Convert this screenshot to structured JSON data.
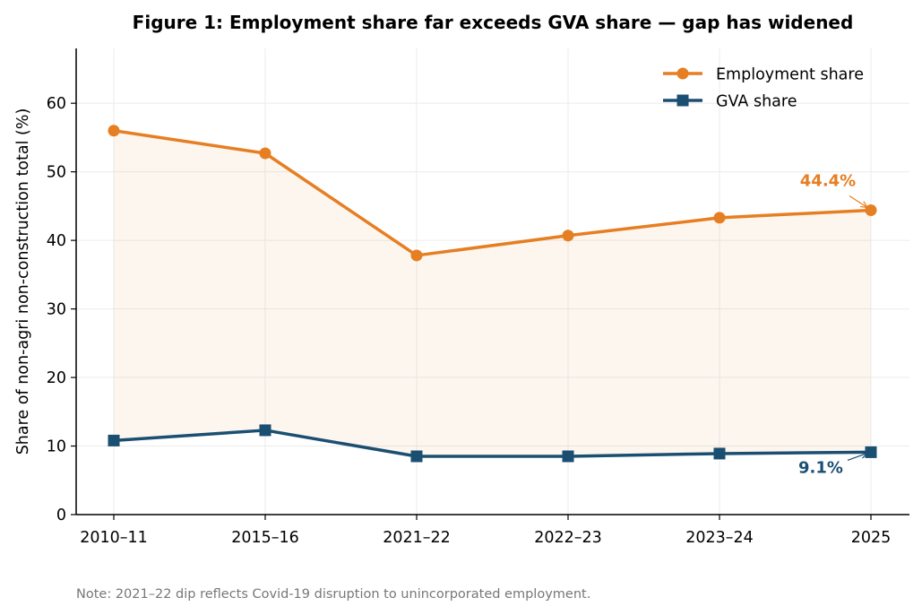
{
  "chart_data": {
    "type": "line",
    "title": "Figure 1: Employment share far exceeds GVA share — gap has widened",
    "xlabel": "",
    "ylabel": "Share of non-agri non-construction total (%)",
    "categories": [
      "2010–11",
      "2015–16",
      "2021–22",
      "2022–23",
      "2023–24",
      "2025"
    ],
    "ylim": [
      0,
      68
    ],
    "yticks": [
      0,
      10,
      20,
      30,
      40,
      50,
      60
    ],
    "grid": true,
    "legend_position": "top-right",
    "fill_between_series": true,
    "series": [
      {
        "name": "Employment share",
        "marker": "circle",
        "color": "#E67E22",
        "values": [
          56.0,
          52.7,
          37.8,
          40.7,
          43.3,
          44.4
        ]
      },
      {
        "name": "GVA share",
        "marker": "square",
        "color": "#1B4F72",
        "values": [
          10.8,
          12.3,
          8.5,
          8.5,
          8.9,
          9.1
        ]
      }
    ],
    "annotations": [
      {
        "text": "44.4%",
        "series": 0,
        "point": 5,
        "color": "#E67E22"
      },
      {
        "text": "9.1%",
        "series": 1,
        "point": 5,
        "color": "#1B4F72"
      }
    ],
    "note": "Note: 2021–22 dip reflects Covid-19 disruption to unincorporated employment."
  }
}
